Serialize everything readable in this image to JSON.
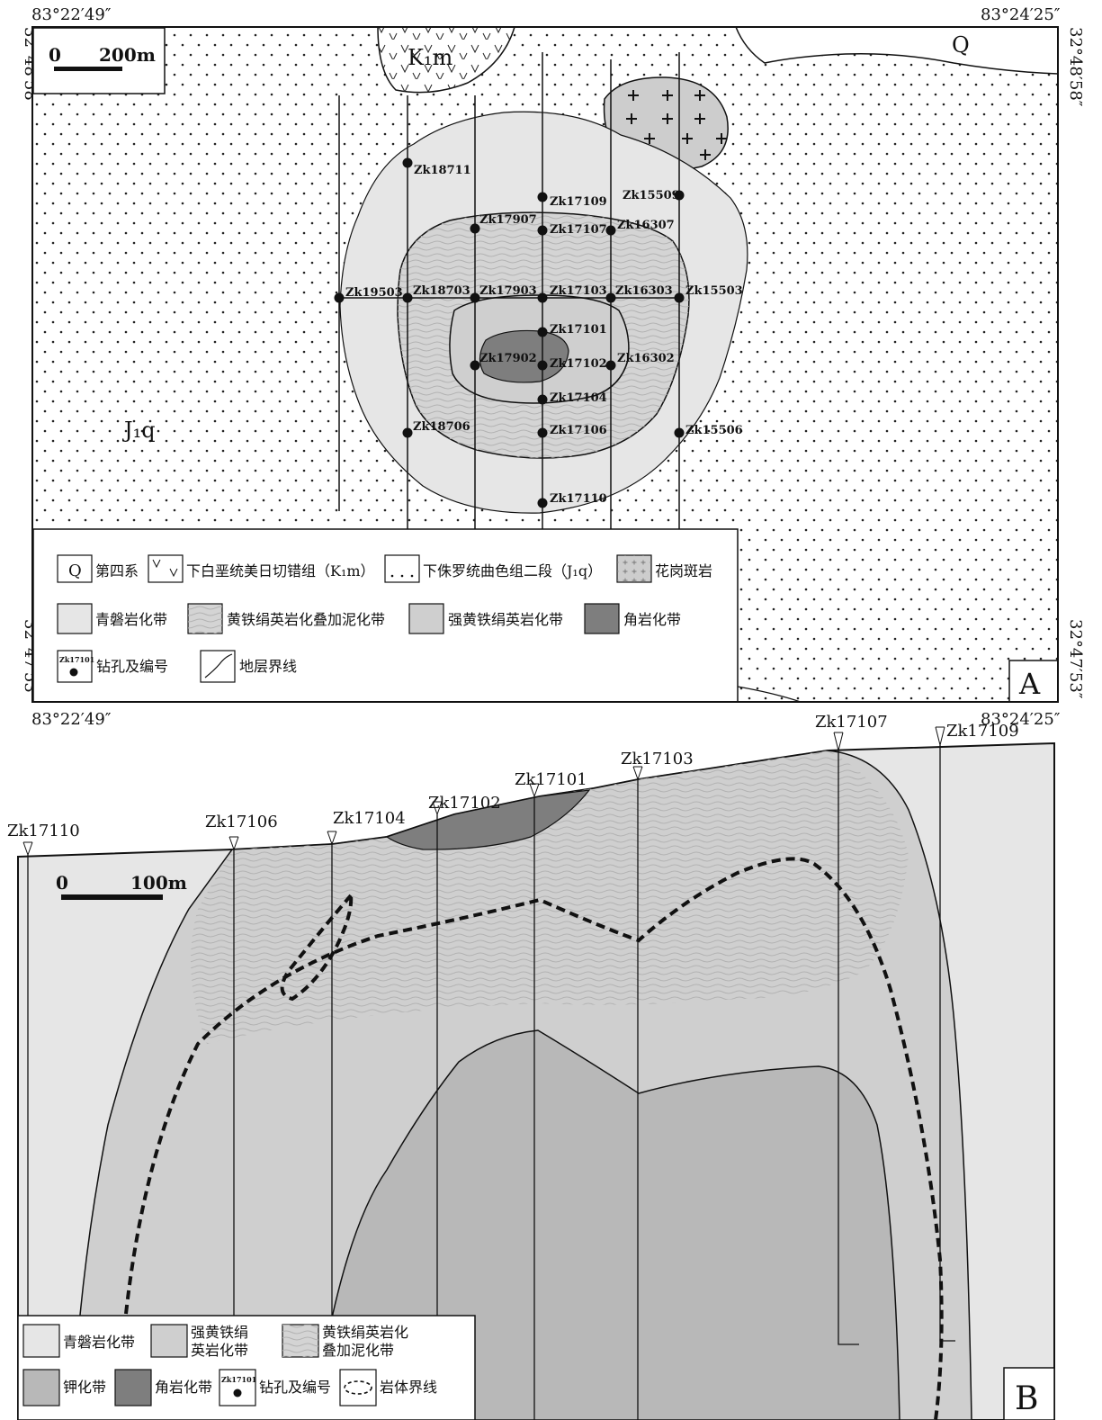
{
  "panel_a": {
    "coords": {
      "top_left": "83°22′49″",
      "top_right": "83°24′25″",
      "bottom_left": "83°22′49″",
      "bottom_right": "83°24′25″",
      "left_top": "32°48′58″",
      "left_bottom": "32°47′53″",
      "right_top": "32°48′58″",
      "right_bottom": "32°47′53″"
    },
    "scale": {
      "zero": "0",
      "text": "200m"
    },
    "unit_labels": {
      "q": "Q",
      "k1m": "K₁m",
      "j1q": "J₁q"
    },
    "panel_label": "A",
    "drillholes": [
      "Zk18711",
      "Zk17109",
      "Zk15509",
      "Zk17907",
      "Zk17107",
      "Zk16307",
      "Zk19503",
      "Zk18703",
      "Zk17903",
      "Zk17103",
      "Zk16303",
      "Zk15503",
      "Zk17101",
      "Zk17902",
      "Zk17102",
      "Zk16302",
      "Zk17104",
      "Zk18706",
      "Zk17106",
      "Zk15506",
      "Zk17110"
    ],
    "legend": {
      "q_box": "Q",
      "q": "第四系",
      "k1m": "下白垩统美日切错组（K₁m）",
      "j1q": "下侏罗统曲色组二段（J₁q）",
      "granite": "花岗斑岩",
      "propylitic": "青磐岩化带",
      "phyllic_argillic": "黄铁绢英岩化叠加泥化带",
      "strong_phyllic": "强黄铁绢英岩化带",
      "hornfels": "角岩化带",
      "drill_sample": "Zk17101",
      "drill": "钻孔及编号",
      "boundary": "地层界线"
    }
  },
  "panel_b": {
    "scale": {
      "zero": "0",
      "text": "100m"
    },
    "panel_label": "B",
    "holes": [
      "Zk17110",
      "Zk17106",
      "Zk17104",
      "Zk17102",
      "Zk17101",
      "Zk17103",
      "Zk17107",
      "Zk17109"
    ],
    "legend": {
      "propylitic": "青磐岩化带",
      "strong_phyllic_1": "强黄铁绢",
      "strong_phyllic_2": "英岩化带",
      "phyllic_argillic_1": "黄铁绢英岩化",
      "phyllic_argillic_2": "叠加泥化带",
      "potassic": "钾化带",
      "hornfels": "角岩化带",
      "drill_sample": "Zk17101",
      "drill": "钻孔及编号",
      "intrusion": "岩体界线"
    }
  },
  "colors": {
    "propylitic": "#e6e6e6",
    "strong_phyllic": "#cfcfcf",
    "potassic": "#b8b8b8",
    "hornfels": "#7e7e7e",
    "granite": "#cdcdcd"
  }
}
